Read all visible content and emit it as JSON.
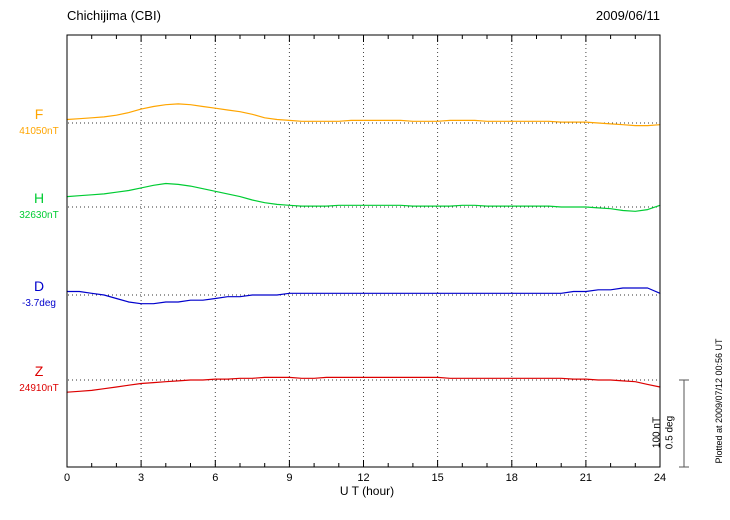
{
  "header": {
    "title": "Chichijima (CBI)",
    "date": "2009/06/11"
  },
  "xaxis": {
    "label": "U T (hour)",
    "tick_labels": [
      "0",
      "3",
      "6",
      "9",
      "12",
      "15",
      "18",
      "21",
      "24"
    ]
  },
  "scale_bar": {
    "line1": "100 nT",
    "line2": "0.5 deg"
  },
  "plotted_at": "Plotted at 2009/07/12 00:56 UT",
  "chart_data": {
    "type": "line",
    "title": "Chichijima (CBI) magnetogram",
    "date": "2009/06/11",
    "xlabel": "U T (hour)",
    "x_range": [
      0,
      24
    ],
    "x_major_ticks": [
      0,
      3,
      6,
      9,
      12,
      15,
      18,
      21,
      24
    ],
    "x_minor_tick_step": 1,
    "grid": "vertical-dotted-at-major-ticks",
    "scale": {
      "nT_per_bar": 100,
      "deg_per_bar": 0.5
    },
    "x_hours": [
      0,
      0.5,
      1,
      1.5,
      2,
      2.5,
      3,
      3.5,
      4,
      4.5,
      5,
      5.5,
      6,
      6.5,
      7,
      7.5,
      8,
      8.5,
      9,
      9.5,
      10,
      10.5,
      11,
      11.5,
      12,
      12.5,
      13,
      13.5,
      14,
      14.5,
      15,
      15.5,
      16,
      16.5,
      17,
      17.5,
      18,
      18.5,
      19,
      19.5,
      20,
      20.5,
      21,
      21.5,
      22,
      22.5,
      23,
      23.5,
      24
    ],
    "series": [
      {
        "name": "F",
        "unit": "nT",
        "baseline": 41050,
        "baseline_label": "41050nT",
        "color": "#FFA500",
        "offsets": [
          4,
          5,
          6,
          7,
          9,
          12,
          16,
          19,
          21,
          22,
          21,
          19,
          17,
          15,
          13,
          10,
          6,
          4,
          3,
          2,
          2,
          2,
          2,
          3,
          3,
          3,
          3,
          3,
          2,
          2,
          2,
          3,
          3,
          3,
          2,
          2,
          2,
          2,
          2,
          2,
          1,
          1,
          1,
          0,
          -1,
          -2,
          -3,
          -3,
          -2
        ]
      },
      {
        "name": "H",
        "unit": "nT",
        "baseline": 32630,
        "baseline_label": "32630nT",
        "color": "#00CC33",
        "offsets": [
          12,
          13,
          14,
          15,
          17,
          19,
          22,
          25,
          27,
          26,
          24,
          21,
          18,
          15,
          12,
          8,
          5,
          3,
          2,
          1,
          1,
          1,
          2,
          2,
          2,
          2,
          2,
          2,
          1,
          1,
          1,
          1,
          2,
          2,
          1,
          1,
          1,
          1,
          1,
          1,
          0,
          0,
          0,
          -1,
          -2,
          -4,
          -5,
          -3,
          2
        ]
      },
      {
        "name": "D",
        "unit": "deg",
        "baseline": -3.7,
        "baseline_label": "-3.7deg",
        "color": "#0000CC",
        "offsets": [
          0.02,
          0.02,
          0.01,
          0.0,
          -0.02,
          -0.04,
          -0.05,
          -0.05,
          -0.04,
          -0.04,
          -0.03,
          -0.03,
          -0.02,
          -0.01,
          -0.01,
          0.0,
          0.0,
          0.0,
          0.01,
          0.01,
          0.01,
          0.01,
          0.01,
          0.01,
          0.01,
          0.01,
          0.01,
          0.01,
          0.01,
          0.01,
          0.01,
          0.01,
          0.01,
          0.01,
          0.01,
          0.01,
          0.01,
          0.01,
          0.01,
          0.01,
          0.01,
          0.02,
          0.02,
          0.03,
          0.03,
          0.04,
          0.04,
          0.04,
          0.01
        ]
      },
      {
        "name": "Z",
        "unit": "nT",
        "baseline": 24910,
        "baseline_label": "24910nT",
        "color": "#DD0000",
        "offsets": [
          -14,
          -13,
          -12,
          -10,
          -8,
          -6,
          -4,
          -3,
          -2,
          -1,
          0,
          0,
          1,
          1,
          2,
          2,
          3,
          3,
          3,
          2,
          2,
          3,
          3,
          3,
          3,
          3,
          3,
          3,
          3,
          3,
          3,
          2,
          2,
          2,
          2,
          2,
          2,
          2,
          2,
          2,
          2,
          1,
          1,
          0,
          0,
          -1,
          -2,
          -5,
          -8
        ]
      }
    ]
  }
}
